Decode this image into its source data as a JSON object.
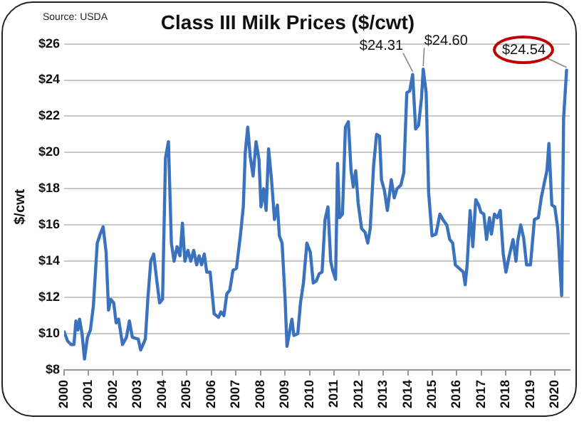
{
  "chart_data": {
    "type": "line",
    "title": "Class III Milk Prices ($/cwt)",
    "ylabel": "$/cwt",
    "annotations": [
      "Source: USDA",
      {
        "text": "$24.31",
        "x": 2014.2,
        "y": 24.31
      },
      {
        "text": "$24.60",
        "x": 2014.63,
        "y": 24.6
      },
      {
        "text": "$24.54",
        "x": 2020.47,
        "y": 24.54
      }
    ],
    "series": [
      {
        "color": "#3a72be",
        "x": [
          2000.0,
          2000.14,
          2000.28,
          2000.4,
          2000.48,
          2000.56,
          2000.63,
          2000.73,
          2000.83,
          2000.95,
          2001.07,
          2001.19,
          2001.35,
          2001.47,
          2001.59,
          2001.71,
          2001.81,
          2001.9,
          2002.02,
          2002.12,
          2002.22,
          2002.38,
          2002.54,
          2002.66,
          2002.78,
          2003.02,
          2003.12,
          2003.31,
          2003.41,
          2003.53,
          2003.65,
          2003.77,
          2003.89,
          2004.01,
          2004.13,
          2004.25,
          2004.37,
          2004.48,
          2004.6,
          2004.72,
          2004.82,
          2004.92,
          2005.04,
          2005.16,
          2005.28,
          2005.4,
          2005.5,
          2005.6,
          2005.71,
          2005.81,
          2005.95,
          2006.11,
          2006.29,
          2006.39,
          2006.51,
          2006.63,
          2006.75,
          2006.88,
          2007.02,
          2007.18,
          2007.3,
          2007.38,
          2007.48,
          2007.58,
          2007.7,
          2007.82,
          2007.94,
          2008.02,
          2008.13,
          2008.23,
          2008.33,
          2008.45,
          2008.57,
          2008.69,
          2008.77,
          2008.88,
          2009.0,
          2009.08,
          2009.2,
          2009.28,
          2009.36,
          2009.52,
          2009.63,
          2009.75,
          2009.89,
          2010.03,
          2010.15,
          2010.27,
          2010.39,
          2010.51,
          2010.63,
          2010.75,
          2010.86,
          2010.94,
          2011.06,
          2011.14,
          2011.22,
          2011.34,
          2011.46,
          2011.58,
          2011.69,
          2011.78,
          2011.88,
          2011.98,
          2012.12,
          2012.26,
          2012.37,
          2012.47,
          2012.61,
          2012.73,
          2012.85,
          2012.93,
          2013.05,
          2013.17,
          2013.33,
          2013.45,
          2013.56,
          2013.72,
          2013.84,
          2013.96,
          2014.08,
          2014.2,
          2014.32,
          2014.44,
          2014.56,
          2014.63,
          2014.75,
          2014.85,
          2014.99,
          2015.15,
          2015.31,
          2015.43,
          2015.59,
          2015.71,
          2015.83,
          2015.94,
          2016.1,
          2016.26,
          2016.34,
          2016.42,
          2016.54,
          2016.65,
          2016.77,
          2016.89,
          2016.98,
          2017.1,
          2017.21,
          2017.33,
          2017.41,
          2017.53,
          2017.65,
          2017.77,
          2017.89,
          2018.0,
          2018.12,
          2018.29,
          2018.41,
          2018.48,
          2018.6,
          2018.72,
          2018.84,
          2019.0,
          2019.16,
          2019.32,
          2019.44,
          2019.56,
          2019.67,
          2019.75,
          2019.87,
          2019.99,
          2020.11,
          2020.27,
          2020.35,
          2020.47
        ],
        "values": [
          10.1,
          9.6,
          9.4,
          9.4,
          10.7,
          10.2,
          10.8,
          10.0,
          8.6,
          9.8,
          10.2,
          11.5,
          15.0,
          15.5,
          15.9,
          14.5,
          11.3,
          11.9,
          11.7,
          10.6,
          10.8,
          9.4,
          9.8,
          10.7,
          9.8,
          9.7,
          9.1,
          9.7,
          11.9,
          14.0,
          14.4,
          13.0,
          11.7,
          11.9,
          19.7,
          20.6,
          15.0,
          14.0,
          14.8,
          14.3,
          16.1,
          14.0,
          14.6,
          14.0,
          14.6,
          13.8,
          14.3,
          13.8,
          14.4,
          13.4,
          13.4,
          11.1,
          10.9,
          11.2,
          11.0,
          12.2,
          12.4,
          13.5,
          13.6,
          15.4,
          17.0,
          20.0,
          21.4,
          19.8,
          18.7,
          20.6,
          19.6,
          17.0,
          18.0,
          16.8,
          20.2,
          18.5,
          16.3,
          17.1,
          15.4,
          15.0,
          12.0,
          9.3,
          10.2,
          10.8,
          9.9,
          10.0,
          11.7,
          12.8,
          15.0,
          14.5,
          12.8,
          12.9,
          13.3,
          13.4,
          16.3,
          17.0,
          14.0,
          13.5,
          13.0,
          19.4,
          16.4,
          16.6,
          21.4,
          21.7,
          19.0,
          18.1,
          19.0,
          17.2,
          15.8,
          15.6,
          15.0,
          15.8,
          19.3,
          21.0,
          20.9,
          18.5,
          17.9,
          16.8,
          18.5,
          17.5,
          18.0,
          18.2,
          18.9,
          23.3,
          23.4,
          24.31,
          21.3,
          21.5,
          23.0,
          24.6,
          23.3,
          17.8,
          15.4,
          15.5,
          16.6,
          16.3,
          16.0,
          15.2,
          15.0,
          13.8,
          13.6,
          13.4,
          12.7,
          13.8,
          16.8,
          14.8,
          17.4,
          17.1,
          16.7,
          16.6,
          15.2,
          16.4,
          15.5,
          16.6,
          16.4,
          16.8,
          14.4,
          13.4,
          14.2,
          15.2,
          14.0,
          15.1,
          16.0,
          15.3,
          13.8,
          13.8,
          16.3,
          16.4,
          17.5,
          18.3,
          19.0,
          20.5,
          17.1,
          17.0,
          15.8,
          12.1,
          21.9,
          24.54
        ]
      }
    ],
    "xlim": [
      2000,
      2020.6
    ],
    "xticks": [
      2000,
      2001,
      2002,
      2003,
      2004,
      2005,
      2006,
      2007,
      2008,
      2009,
      2010,
      2011,
      2012,
      2013,
      2014,
      2015,
      2016,
      2017,
      2018,
      2019,
      2020
    ],
    "ylim": [
      8,
      26
    ],
    "yticks": [
      {
        "value": 8,
        "label": "$8"
      },
      {
        "value": 10,
        "label": "$10"
      },
      {
        "value": 12,
        "label": "$12"
      },
      {
        "value": 14,
        "label": "$14"
      },
      {
        "value": 16,
        "label": "$16"
      },
      {
        "value": 18,
        "label": "$18"
      },
      {
        "value": 20,
        "label": "$20"
      },
      {
        "value": 22,
        "label": "$22"
      },
      {
        "value": 24,
        "label": "$24"
      },
      {
        "value": 26,
        "label": "$26"
      }
    ],
    "grid": "y",
    "legend": false,
    "marker": "none",
    "line_style": "solid"
  }
}
